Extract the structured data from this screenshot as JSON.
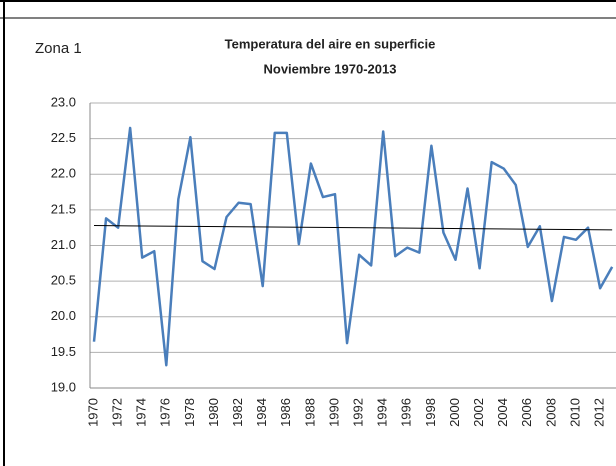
{
  "chart_data": {
    "type": "line",
    "annotation": "Zona 1",
    "title": "Temperatura del aire en superficie",
    "subtitle": "Noviembre 1970-2013",
    "categories": [
      "1970",
      null,
      "1972",
      null,
      "1974",
      null,
      "1976",
      null,
      "1978",
      null,
      "1980",
      null,
      "1982",
      null,
      "1984",
      null,
      "1986",
      null,
      "1988",
      null,
      "1990",
      null,
      "1992",
      null,
      "1994",
      null,
      "1996",
      null,
      "1998",
      null,
      "2000",
      null,
      "2002",
      null,
      "2004",
      null,
      "2006",
      null,
      "2008",
      null,
      "2010",
      null,
      "2012",
      null
    ],
    "values": [
      19.65,
      21.38,
      21.25,
      22.65,
      20.83,
      20.92,
      19.32,
      21.65,
      22.52,
      20.78,
      20.67,
      21.4,
      21.6,
      21.58,
      20.43,
      22.58,
      22.58,
      21.02,
      22.15,
      21.68,
      21.72,
      19.63,
      20.87,
      20.72,
      22.6,
      20.85,
      20.97,
      20.9,
      22.4,
      21.18,
      20.8,
      21.8,
      20.68,
      22.17,
      22.08,
      21.85,
      20.98,
      21.27,
      20.22,
      21.12,
      21.08,
      21.25,
      20.4,
      20.7
    ],
    "color": "#4a7ebb",
    "trendline": [
      21.28,
      21.22
    ],
    "trendline_color": "#000000",
    "ylim": [
      19,
      23
    ],
    "yticks": [
      {
        "value": 19,
        "label": "19.0"
      },
      19.5,
      {
        "value": 20,
        "label": "20.0"
      },
      20.5,
      {
        "value": 21,
        "label": "21.0"
      },
      21.5,
      {
        "value": 22,
        "label": "22.0"
      },
      22.5,
      {
        "value": 23,
        "label": "23.0"
      }
    ],
    "grid": true
  }
}
